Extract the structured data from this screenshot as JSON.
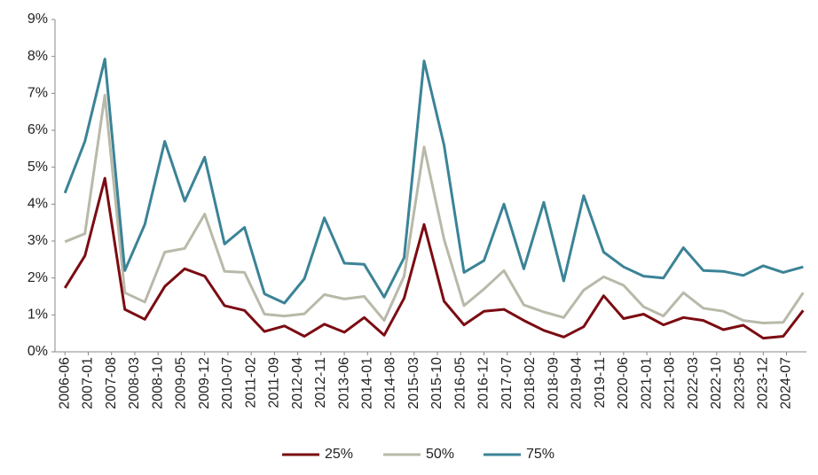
{
  "chart_data": {
    "type": "line",
    "x": [
      "2006-06",
      "2006-12",
      "2007-06",
      "2007-12",
      "2008-06",
      "2008-12",
      "2009-06",
      "2009-12",
      "2010-06",
      "2010-12",
      "2011-06",
      "2011-12",
      "2012-06",
      "2012-12",
      "2013-06",
      "2013-12",
      "2014-06",
      "2014-12",
      "2015-06",
      "2015-12",
      "2016-06",
      "2016-12",
      "2017-06",
      "2017-12",
      "2018-06",
      "2018-12",
      "2019-06",
      "2019-12",
      "2020-06",
      "2020-12",
      "2021-06",
      "2021-12",
      "2022-06",
      "2022-12",
      "2023-06",
      "2023-12",
      "2024-06",
      "2024-12"
    ],
    "series": [
      {
        "name": "25%",
        "color": "#7b0c12",
        "values": [
          1.73,
          2.6,
          4.7,
          1.15,
          0.88,
          1.77,
          2.25,
          2.05,
          1.25,
          1.12,
          0.55,
          0.7,
          0.42,
          0.75,
          0.53,
          0.93,
          0.45,
          1.45,
          3.45,
          1.37,
          0.73,
          1.1,
          1.15,
          0.85,
          0.58,
          0.4,
          0.68,
          1.52,
          0.9,
          1.02,
          0.73,
          0.93,
          0.85,
          0.6,
          0.72,
          0.37,
          0.42,
          1.12
        ]
      },
      {
        "name": "50%",
        "color": "#b9b9aa",
        "values": [
          2.98,
          3.2,
          6.95,
          1.6,
          1.35,
          2.7,
          2.8,
          3.73,
          2.18,
          2.15,
          1.02,
          0.97,
          1.03,
          1.55,
          1.43,
          1.5,
          0.85,
          2.05,
          5.55,
          3.05,
          1.25,
          1.7,
          2.2,
          1.27,
          1.08,
          0.93,
          1.67,
          2.03,
          1.8,
          1.22,
          0.97,
          1.6,
          1.18,
          1.1,
          0.85,
          0.78,
          0.8,
          1.6
        ]
      },
      {
        "name": "75%",
        "color": "#3b8396",
        "values": [
          4.3,
          5.7,
          7.93,
          2.2,
          3.45,
          5.7,
          4.08,
          5.27,
          2.92,
          3.37,
          1.57,
          1.32,
          1.98,
          3.63,
          2.4,
          2.37,
          1.48,
          2.55,
          7.88,
          5.6,
          2.15,
          2.47,
          4.0,
          2.25,
          4.05,
          1.92,
          4.23,
          2.7,
          2.3,
          2.05,
          2.0,
          2.82,
          2.2,
          2.18,
          2.07,
          2.33,
          2.15,
          2.3
        ]
      }
    ],
    "xlim": [
      "2006-03",
      "2025-01"
    ],
    "xticks": [
      "2006-06",
      "2007-01",
      "2007-08",
      "2008-03",
      "2008-10",
      "2009-05",
      "2009-12",
      "2010-07",
      "2011-02",
      "2011-09",
      "2012-04",
      "2012-11",
      "2013-06",
      "2014-01",
      "2014-08",
      "2015-03",
      "2015-10",
      "2016-05",
      "2016-12",
      "2017-07",
      "2018-02",
      "2018-09",
      "2019-04",
      "2019-11",
      "2020-06",
      "2021-01",
      "2021-08",
      "2022-03",
      "2022-10",
      "2023-05",
      "2023-12",
      "2024-07"
    ],
    "ylim": [
      0,
      9
    ],
    "yticks": [
      {
        "value": 0,
        "label": "0%"
      },
      {
        "value": 1,
        "label": "1%"
      },
      {
        "value": 2,
        "label": "2%"
      },
      {
        "value": 3,
        "label": "3%"
      },
      {
        "value": 4,
        "label": "4%"
      },
      {
        "value": 5,
        "label": "5%"
      },
      {
        "value": 6,
        "label": "6%"
      },
      {
        "value": 7,
        "label": "7%"
      },
      {
        "value": 8,
        "label": "8%"
      },
      {
        "value": 9,
        "label": "9%"
      }
    ],
    "legend": "bottom"
  }
}
